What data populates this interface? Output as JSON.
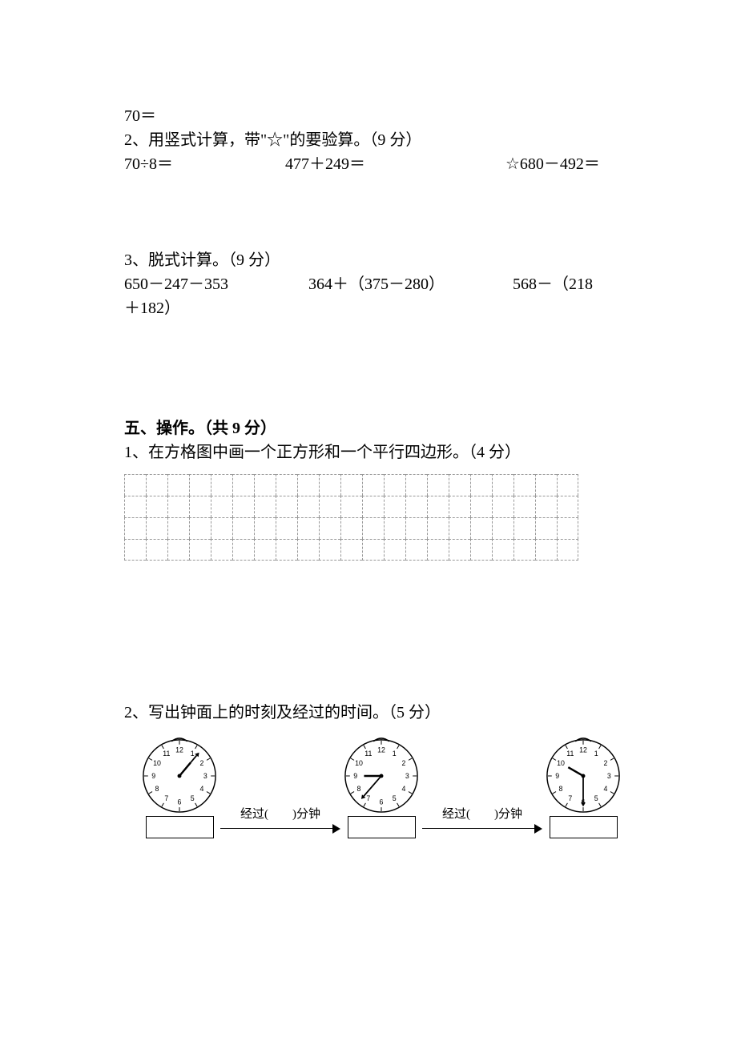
{
  "q1_tail": "70＝",
  "q2": {
    "title": "2、用竖式计算，带\"☆\"的要验算。（9 分）",
    "items": [
      "70÷8＝",
      "477＋249＝",
      "☆680－492＝"
    ]
  },
  "q3": {
    "title": "3、脱式计算。（9 分）",
    "items": [
      "650－247－353",
      "364＋（375－280）",
      "568－（218"
    ],
    "tail": "＋182）"
  },
  "section5": {
    "heading": "五、操作。（共 9 分）",
    "q1": "1、在方格图中画一个正方形和一个平行四边形。（4 分）",
    "q2": "2、写出钟面上的时刻及经过的时间。（5 分）"
  },
  "grid": {
    "rows": 4,
    "cols": 21
  },
  "clocks": {
    "numbers": [
      "12",
      "1",
      "2",
      "3",
      "4",
      "5",
      "6",
      "7",
      "8",
      "9",
      "10",
      "11"
    ],
    "c1": {
      "hour_angle": 40,
      "min_angle": 40,
      "hour_len": 22,
      "min_len": 34
    },
    "c2": {
      "hour_angle": 270,
      "min_angle": 221,
      "hour_len": 22,
      "min_len": 34
    },
    "c3": {
      "hour_angle": 300,
      "min_angle": 180,
      "hour_len": 22,
      "min_len": 34
    },
    "pass_labels": [
      "经过(　　)分钟",
      "经过(　　)分钟"
    ]
  },
  "colors": {
    "text": "#000000",
    "bg": "#ffffff",
    "grid": "#999999"
  }
}
